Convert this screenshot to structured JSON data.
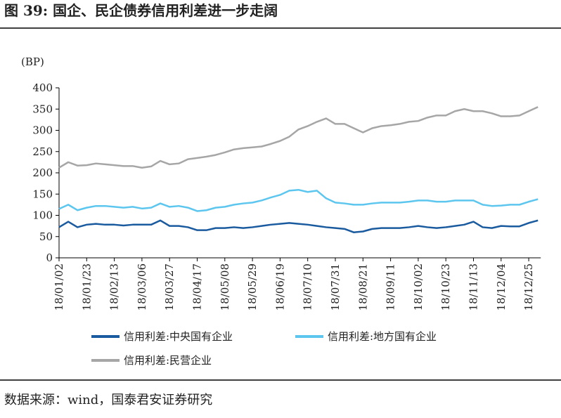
{
  "chart_data": {
    "type": "line",
    "title": "图 39:  国企、民企债券信用利差进一步走阔",
    "y_label": "(BP)",
    "source": "数据来源：wind，国泰君安证券研究",
    "categories": [
      "18/01/02",
      null,
      null,
      "18/01/23",
      null,
      null,
      "18/02/13",
      null,
      null,
      "18/03/06",
      null,
      null,
      "18/03/27",
      null,
      null,
      "18/04/17",
      null,
      null,
      "18/05/08",
      null,
      null,
      "18/05/29",
      null,
      null,
      "18/06/19",
      null,
      null,
      "18/07/10",
      null,
      null,
      "18/07/31",
      null,
      null,
      "18/08/21",
      null,
      null,
      "18/09/11",
      null,
      null,
      "18/10/02",
      null,
      null,
      "18/10/23",
      null,
      null,
      "18/11/13",
      null,
      null,
      "18/12/04",
      null,
      null,
      "18/12/25",
      null
    ],
    "series": [
      {
        "name": "信用利差:中央国有企业",
        "color": "#1a5a9e",
        "values": [
          72,
          85,
          72,
          78,
          80,
          78,
          78,
          76,
          78,
          78,
          78,
          88,
          75,
          75,
          72,
          65,
          65,
          70,
          70,
          72,
          70,
          72,
          75,
          78,
          80,
          82,
          80,
          78,
          75,
          72,
          70,
          68,
          60,
          62,
          68,
          70,
          70,
          70,
          72,
          75,
          72,
          70,
          72,
          75,
          78,
          85,
          72,
          70,
          75,
          74,
          74,
          82,
          88
        ]
      },
      {
        "name": "信用利差:地方国有企业",
        "color": "#5cc6ef",
        "values": [
          115,
          125,
          112,
          118,
          122,
          122,
          120,
          118,
          120,
          116,
          118,
          128,
          120,
          122,
          118,
          110,
          112,
          118,
          120,
          125,
          128,
          130,
          135,
          142,
          148,
          158,
          160,
          155,
          158,
          140,
          130,
          128,
          125,
          125,
          128,
          130,
          130,
          130,
          132,
          135,
          135,
          132,
          132,
          135,
          135,
          135,
          125,
          122,
          123,
          125,
          125,
          132,
          138
        ]
      },
      {
        "name": "信用利差:民营企业",
        "color": "#a6a6a6",
        "values": [
          212,
          225,
          217,
          218,
          222,
          220,
          218,
          216,
          216,
          212,
          215,
          228,
          220,
          222,
          232,
          235,
          238,
          242,
          248,
          255,
          258,
          260,
          262,
          268,
          275,
          285,
          302,
          310,
          320,
          328,
          315,
          315,
          305,
          295,
          305,
          310,
          312,
          315,
          320,
          322,
          330,
          335,
          335,
          345,
          350,
          345,
          345,
          340,
          333,
          333,
          335,
          345,
          355
        ]
      }
    ],
    "ylim": [
      0,
      400
    ],
    "yticks": [
      0,
      50,
      100,
      150,
      200,
      250,
      300,
      350,
      400
    ],
    "grid": false
  }
}
